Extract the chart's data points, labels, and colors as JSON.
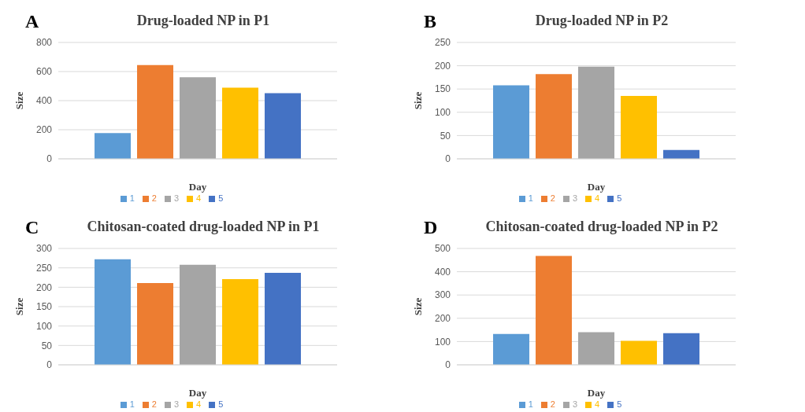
{
  "chart_data": [
    {
      "type": "bar",
      "title": "Drug-loaded NP in P1",
      "annotations": [
        "A"
      ],
      "xlabel": "Day",
      "ylabel": "Size",
      "categories": [
        null
      ],
      "ylim": [
        0,
        800
      ],
      "yticks": [
        0,
        200,
        400,
        600,
        800
      ],
      "grid": "y",
      "legend": "bottom",
      "series": [
        {
          "name": "1",
          "color": "#5b9bd5",
          "values": [
            177
          ]
        },
        {
          "name": "2",
          "color": "#ed7d31",
          "values": [
            645
          ]
        },
        {
          "name": "3",
          "color": "#a5a5a5",
          "values": [
            561
          ]
        },
        {
          "name": "4",
          "color": "#ffc000",
          "values": [
            489
          ]
        },
        {
          "name": "5",
          "color": "#4472c4",
          "values": [
            452
          ]
        }
      ]
    },
    {
      "type": "bar",
      "title": "Drug-loaded NP in P2",
      "annotations": [
        "B"
      ],
      "xlabel": "Day",
      "ylabel": "Size",
      "categories": [
        null
      ],
      "ylim": [
        0,
        250
      ],
      "yticks": [
        0,
        50,
        100,
        150,
        200,
        250
      ],
      "grid": "y",
      "legend": "bottom",
      "series": [
        {
          "name": "1",
          "color": "#5b9bd5",
          "values": [
            158
          ]
        },
        {
          "name": "2",
          "color": "#ed7d31",
          "values": [
            182
          ]
        },
        {
          "name": "3",
          "color": "#a5a5a5",
          "values": [
            198
          ]
        },
        {
          "name": "4",
          "color": "#ffc000",
          "values": [
            135
          ]
        },
        {
          "name": "5",
          "color": "#4472c4",
          "values": [
            19
          ]
        }
      ]
    },
    {
      "type": "bar",
      "title": "Chitosan-coated drug-loaded NP in P1",
      "annotations": [
        "C"
      ],
      "xlabel": "Day",
      "ylabel": "Size",
      "categories": [
        null
      ],
      "ylim": [
        0,
        300
      ],
      "yticks": [
        0,
        50,
        100,
        150,
        200,
        250,
        300
      ],
      "grid": "y",
      "legend": "bottom",
      "series": [
        {
          "name": "1",
          "color": "#5b9bd5",
          "values": [
            272
          ]
        },
        {
          "name": "2",
          "color": "#ed7d31",
          "values": [
            211
          ]
        },
        {
          "name": "3",
          "color": "#a5a5a5",
          "values": [
            258
          ]
        },
        {
          "name": "4",
          "color": "#ffc000",
          "values": [
            221
          ]
        },
        {
          "name": "5",
          "color": "#4472c4",
          "values": [
            237
          ]
        }
      ]
    },
    {
      "type": "bar",
      "title": "Chitosan-coated drug-loaded NP in P2",
      "annotations": [
        "D"
      ],
      "xlabel": "Day",
      "ylabel": "Size",
      "categories": [
        null
      ],
      "ylim": [
        0,
        500
      ],
      "yticks": [
        0,
        100,
        200,
        300,
        400,
        500
      ],
      "grid": "y",
      "legend": "bottom",
      "series": [
        {
          "name": "1",
          "color": "#5b9bd5",
          "values": [
            133
          ]
        },
        {
          "name": "2",
          "color": "#ed7d31",
          "values": [
            468
          ]
        },
        {
          "name": "3",
          "color": "#a5a5a5",
          "values": [
            140
          ]
        },
        {
          "name": "4",
          "color": "#ffc000",
          "values": [
            103
          ]
        },
        {
          "name": "5",
          "color": "#4472c4",
          "values": [
            136
          ]
        }
      ]
    }
  ]
}
